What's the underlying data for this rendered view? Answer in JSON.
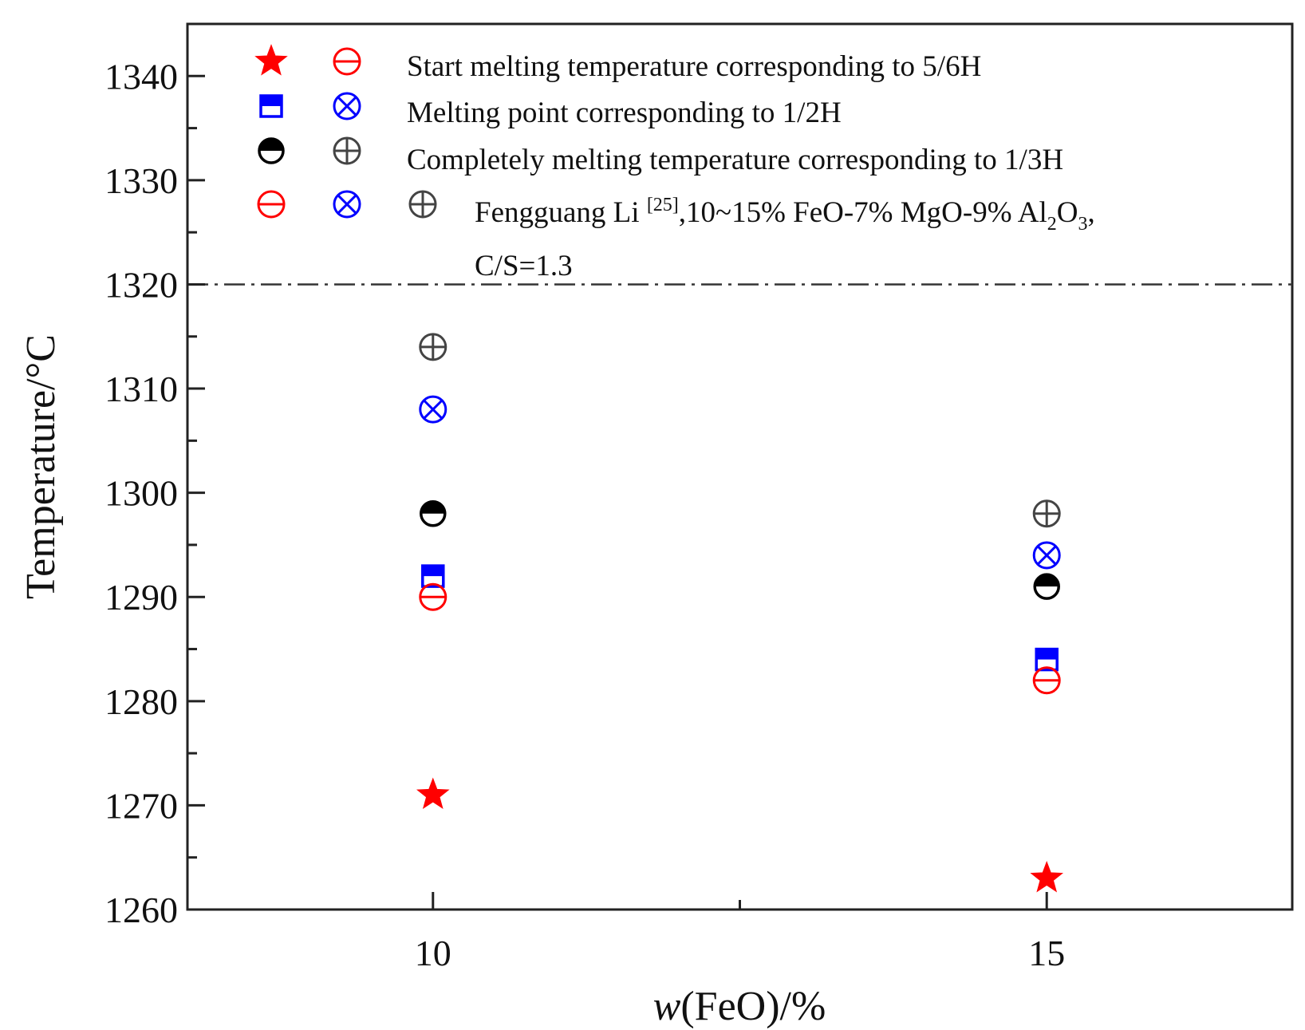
{
  "chart_data": {
    "type": "scatter",
    "title": "",
    "xlabel_italic": "w",
    "xlabel_rest": "(FeO)/%",
    "ylabel": "Temperature/°C",
    "xlim": [
      8,
      17
    ],
    "ylim": [
      1260,
      1345
    ],
    "x_ticks": [
      10,
      15
    ],
    "x_minor_ticks": [
      12.5
    ],
    "y_ticks": [
      1260,
      1270,
      1280,
      1290,
      1300,
      1310,
      1320,
      1330,
      1340
    ],
    "reference_line": {
      "y": 1320,
      "style": "dash-dot"
    },
    "colors": {
      "red": "#ff0000",
      "blue": "#0000ff",
      "black": "#000000",
      "gray": "#444444"
    },
    "series": [
      {
        "name": "Start melting temperature corresponding to 5/6H",
        "marker": "star",
        "color": "#ff0000",
        "x": [
          10,
          15
        ],
        "y": [
          1271,
          1263
        ]
      },
      {
        "name": "Melting point corresponding to 1/2H",
        "marker": "half-square",
        "color": "#0000ff",
        "x": [
          10,
          15
        ],
        "y": [
          1292,
          1284
        ]
      },
      {
        "name": "Completely melting temperature corresponding to 1/3H",
        "marker": "half-circle",
        "color": "#000000",
        "x": [
          10,
          15
        ],
        "y": [
          1298,
          1291
        ]
      },
      {
        "name": "Fengguang Li start melting",
        "marker": "circle-minus",
        "color": "#ff0000",
        "x": [
          10,
          15
        ],
        "y": [
          1290,
          1282
        ]
      },
      {
        "name": "Fengguang Li melting point",
        "marker": "circle-x",
        "color": "#0000ff",
        "x": [
          10,
          15
        ],
        "y": [
          1308,
          1294
        ]
      },
      {
        "name": "Fengguang Li completely melting",
        "marker": "circle-plus",
        "color": "#444444",
        "x": [
          10,
          15
        ],
        "y": [
          1314,
          1298
        ]
      }
    ],
    "legend": {
      "placement": "top-left",
      "rows": [
        {
          "symbols": [
            "star-red",
            "circle-minus-red"
          ],
          "text": "Start melting temperature corresponding to 5/6H"
        },
        {
          "symbols": [
            "half-square-blue",
            "circle-x-blue"
          ],
          "text": "Melting point corresponding to 1/2H"
        },
        {
          "symbols": [
            "half-circle-black",
            "circle-plus-gray"
          ],
          "text": "Completely melting temperature corresponding to 1/3H"
        }
      ],
      "reference": {
        "symbols": [
          "circle-minus-red",
          "circle-x-blue",
          "circle-plus-gray"
        ],
        "author": "Fengguang Li ",
        "ref": "[25]",
        "text_before_sub": ",10~15% FeO-7% MgO-9% Al",
        "sub1": "2",
        "o_text": "O",
        "sub2": "3",
        "after_sub": ",",
        "line2": "C/S=1.3"
      }
    }
  }
}
